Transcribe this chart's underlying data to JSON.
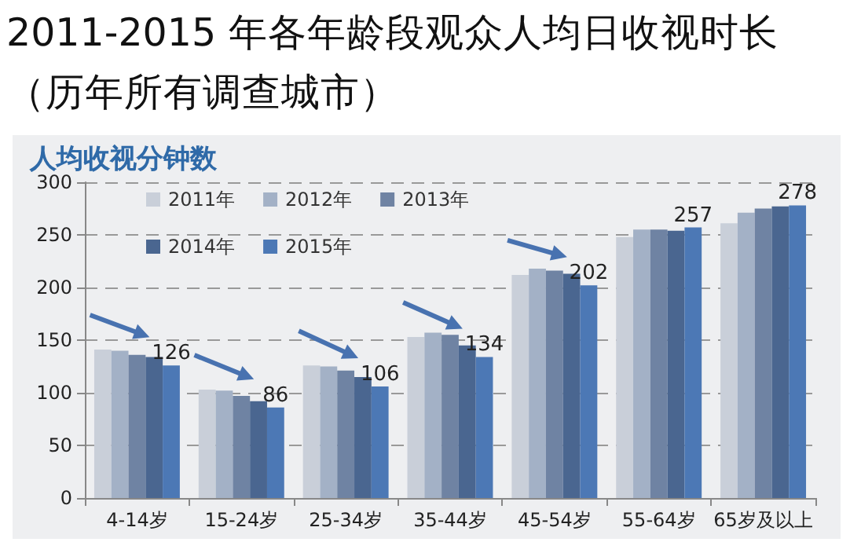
{
  "chart_data": {
    "type": "bar",
    "title": "2011-2015 年各年龄段观众人均日收视时长（历年所有调查城市）",
    "ylabel": "人均收视分钟数",
    "categories": [
      "4-14岁",
      "15-24岁",
      "25-34岁",
      "35-44岁",
      "45-54岁",
      "55-64岁",
      "65岁及以上"
    ],
    "series": [
      {
        "name": "2011年",
        "color": "#c9cfd9",
        "values": [
          141,
          103,
          126,
          153,
          212,
          248,
          261
        ]
      },
      {
        "name": "2012年",
        "color": "#a3b1c6",
        "values": [
          140,
          102,
          125,
          157,
          218,
          255,
          271
        ]
      },
      {
        "name": "2013年",
        "color": "#6f83a3",
        "values": [
          136,
          97,
          121,
          155,
          216,
          255,
          275
        ]
      },
      {
        "name": "2014年",
        "color": "#4a6690",
        "values": [
          134,
          92,
          115,
          145,
          213,
          254,
          277
        ]
      },
      {
        "name": "2015年",
        "color": "#4c78b5",
        "values": [
          126,
          86,
          106,
          134,
          202,
          257,
          278
        ],
        "value_labels": [
          "126",
          "86",
          "106",
          "134",
          "202",
          "257",
          "278"
        ]
      }
    ],
    "ylim": [
      0,
      300
    ],
    "yticks": [
      0,
      50,
      100,
      150,
      200,
      250,
      300
    ],
    "grid": "y",
    "legend": "top left"
  }
}
